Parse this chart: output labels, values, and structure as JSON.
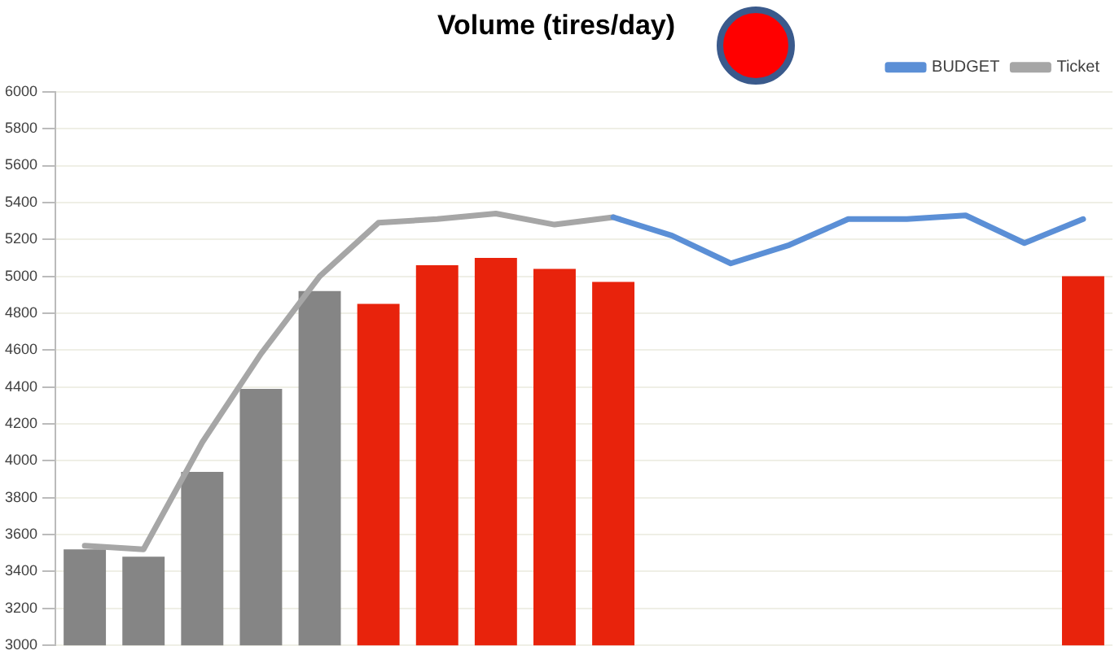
{
  "chart_data": {
    "type": "bar",
    "title": "Volume (tires/day)",
    "categories": [
      null,
      null,
      null,
      null,
      null,
      null,
      null,
      null,
      null,
      null,
      null,
      null,
      null,
      null,
      null,
      null,
      null,
      null
    ],
    "series": [
      {
        "colors": [
          "#858585",
          "#858585",
          "#858585",
          "#858585",
          "#858585",
          "#e8230c",
          "#e8230c",
          "#e8230c",
          "#e8230c",
          "#e8230c",
          null,
          null,
          null,
          null,
          null,
          null,
          null,
          "#e8230c"
        ],
        "values": [
          3520,
          3480,
          3940,
          4390,
          4920,
          4850,
          5060,
          5100,
          5040,
          4970,
          null,
          null,
          null,
          null,
          null,
          null,
          null,
          5000
        ]
      },
      {
        "type": "line",
        "name": "BUDGET",
        "color": "#5b8fd6",
        "values": [
          null,
          null,
          null,
          null,
          null,
          null,
          null,
          null,
          null,
          5320,
          5220,
          5070,
          5170,
          5310,
          5310,
          5330,
          5180,
          5310
        ]
      },
      {
        "type": "line",
        "name": "Ticket",
        "color": "#a6a6a6",
        "values": [
          3540,
          3520,
          4100,
          4580,
          5000,
          5290,
          5310,
          5340,
          5280,
          5320,
          null,
          null,
          null,
          null,
          null,
          null,
          null,
          null
        ]
      }
    ],
    "ylim": [
      3000,
      6000
    ],
    "yticks": [
      3000,
      3200,
      3400,
      3600,
      3800,
      4000,
      4200,
      4400,
      4600,
      4800,
      5000,
      5200,
      5400,
      5600,
      5800,
      6000
    ],
    "grid": "y",
    "legend": "top right",
    "tick_labels": "y",
    "marker": "none",
    "line_style": "solid"
  }
}
